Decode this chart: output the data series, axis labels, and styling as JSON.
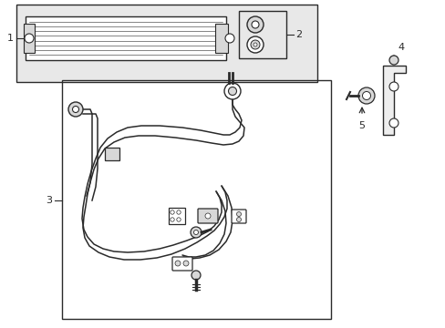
{
  "background_color": "#ffffff",
  "line_color": "#2a2a2a",
  "gray_fill": "#d8d8d8",
  "light_fill": "#eeeeee",
  "border_color": "#444444",
  "label_1": "1",
  "label_2": "2",
  "label_3": "3",
  "label_4": "4",
  "label_5": "5",
  "fig_width": 4.89,
  "fig_height": 3.6,
  "dpi": 100
}
